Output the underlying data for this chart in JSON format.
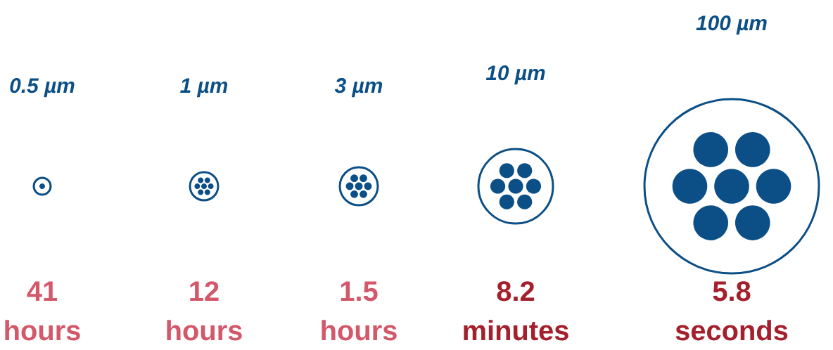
{
  "chart_data": {
    "type": "other",
    "categories": [
      "0.5 µm",
      "1 µm",
      "3 µm",
      "10 µm",
      "100 µm"
    ],
    "values": [
      41,
      12,
      1.5,
      8.2,
      5.8
    ],
    "data_labels": true,
    "annotations": [
      "hours",
      "hours",
      "hours",
      "minutes",
      "seconds"
    ],
    "colors": [
      "#d2586a",
      "#d2586a",
      "#d2586a",
      "#a3202c",
      "#a3202c"
    ],
    "color": "#0c4f86"
  }
}
